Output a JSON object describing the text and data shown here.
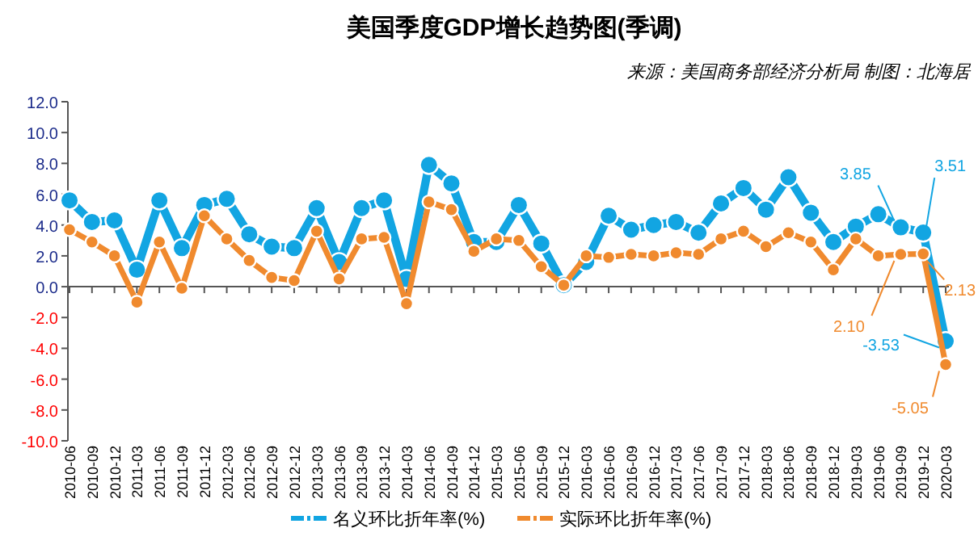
{
  "chart_data": {
    "type": "line",
    "title": "美国季度GDP增长趋势图(季调)",
    "subtitle": "来源：美国商务部经济分析局  制图：北海居",
    "categories": [
      "2010-06",
      "2010-09",
      "2010-12",
      "2011-03",
      "2011-06",
      "2011-09",
      "2011-12",
      "2012-03",
      "2012-06",
      "2012-09",
      "2012-12",
      "2013-03",
      "2013-06",
      "2013-09",
      "2013-12",
      "2014-03",
      "2014-06",
      "2014-09",
      "2014-12",
      "2015-03",
      "2015-06",
      "2015-09",
      "2015-12",
      "2016-03",
      "2016-06",
      "2016-09",
      "2016-12",
      "2017-03",
      "2017-06",
      "2017-09",
      "2017-12",
      "2018-03",
      "2018-06",
      "2018-09",
      "2018-12",
      "2019-03",
      "2019-06",
      "2019-09",
      "2019-12",
      "2020-03"
    ],
    "series": [
      {
        "name": "名义环比折年率(%)",
        "color": "#12a5e2",
        "values": [
          5.6,
          4.2,
          4.3,
          1.1,
          5.6,
          2.5,
          5.3,
          5.7,
          3.4,
          2.6,
          2.5,
          5.1,
          1.6,
          5.1,
          5.6,
          0.5,
          7.9,
          6.7,
          2.9,
          2.9,
          5.3,
          2.8,
          0.1,
          1.6,
          4.6,
          3.7,
          4.0,
          4.2,
          3.5,
          5.4,
          6.4,
          5.0,
          7.1,
          4.8,
          2.9,
          3.9,
          4.7,
          3.85,
          3.51,
          -3.53
        ]
      },
      {
        "name": "实际环比折年率(%)",
        "color": "#f08a2e",
        "values": [
          3.7,
          2.9,
          2.0,
          -1.0,
          2.9,
          -0.1,
          4.6,
          3.1,
          1.7,
          0.6,
          0.4,
          3.6,
          0.5,
          3.1,
          3.2,
          -1.1,
          5.5,
          5.0,
          2.3,
          3.1,
          3.0,
          1.3,
          0.1,
          2.0,
          1.9,
          2.1,
          2.0,
          2.2,
          2.1,
          3.1,
          3.6,
          2.6,
          3.5,
          2.9,
          1.1,
          3.1,
          2.0,
          2.1,
          2.13,
          -5.05
        ]
      }
    ],
    "ylim": [
      -10,
      12
    ],
    "yticks": [
      {
        "value": -10,
        "label": "-10.0"
      },
      {
        "value": -8,
        "label": "-8.0"
      },
      {
        "value": -6,
        "label": "-6.0"
      },
      {
        "value": -4,
        "label": "-4.0"
      },
      {
        "value": -2,
        "label": "-2.0"
      },
      {
        "value": 0,
        "label": "0.0"
      },
      {
        "value": 2,
        "label": "2.0"
      },
      {
        "value": 4,
        "label": "4.0"
      },
      {
        "value": 6,
        "label": "6.0"
      },
      {
        "value": 8,
        "label": "8.0"
      },
      {
        "value": 10,
        "label": "10.0"
      },
      {
        "value": 12,
        "label": "12.0"
      }
    ],
    "annotations": [
      {
        "text": "3.85",
        "x": "2019-09",
        "y": 3.85
      },
      {
        "text": "3.51",
        "x": "2019-12",
        "y": 3.51
      },
      {
        "text": "2.10",
        "x": "2019-09",
        "y": 2.1
      },
      {
        "text": "2.13",
        "x": "2019-12",
        "y": 2.13
      },
      {
        "text": "-3.53",
        "x": "2020-03",
        "y": -3.53
      },
      {
        "text": "-5.05",
        "x": "2020-03",
        "y": -5.05
      }
    ],
    "marker": "circle",
    "legend": "bottom"
  }
}
